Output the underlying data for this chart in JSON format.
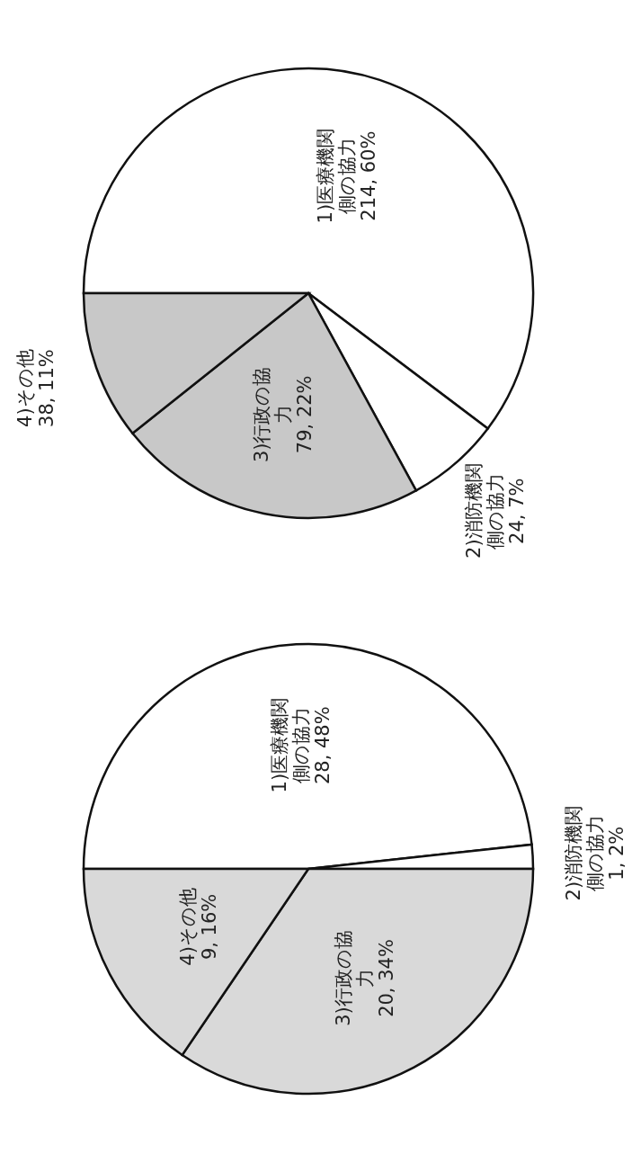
{
  "chart_data": [
    {
      "type": "pie",
      "categories": [
        "1)医療機関側の協力",
        "2)消防機関側の協力",
        "3)行政の協力",
        "4)その他"
      ],
      "values": [
        28,
        1,
        20,
        9
      ],
      "value_labels": [
        "28, 48%",
        "1, 2%",
        "20, 34%",
        "9, 16%"
      ],
      "colors": [
        "#ffffff",
        "#ffffff",
        "#d9d9d9",
        "#d9d9d9"
      ]
    },
    {
      "type": "pie",
      "categories": [
        "1)医療機関側の協力",
        "2)消防機関側の協力",
        "3)行政の協力",
        "4)その他"
      ],
      "values": [
        214,
        24,
        79,
        38
      ],
      "value_labels": [
        "214, 60%",
        "24, 7%",
        "79, 22%",
        "38, 11%"
      ],
      "colors": [
        "#ffffff",
        "#ffffff",
        "#c8c8c8",
        "#c8c8c8"
      ]
    }
  ]
}
